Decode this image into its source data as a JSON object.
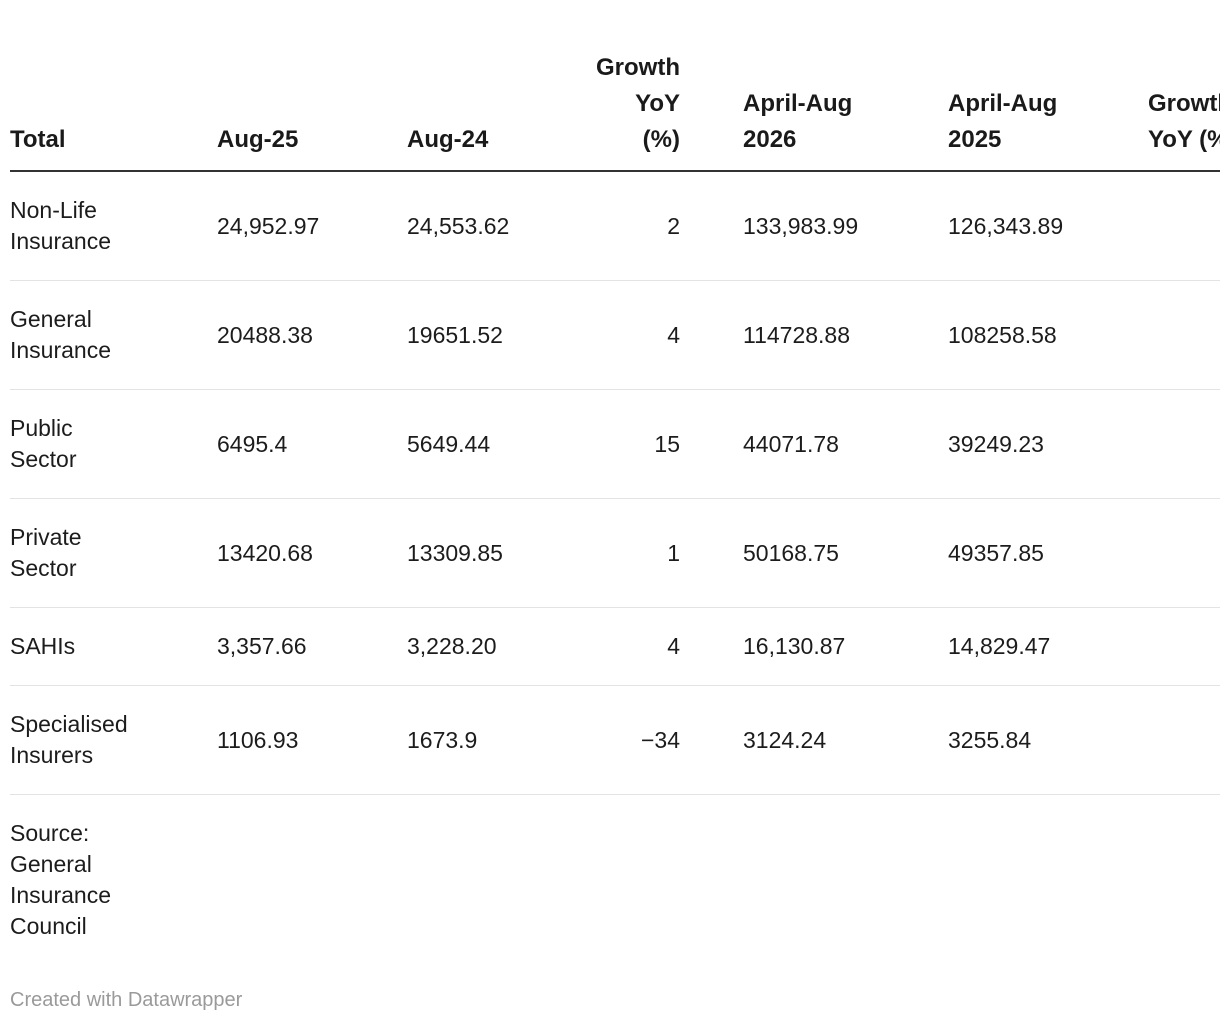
{
  "chart_data": {
    "type": "table",
    "title": "",
    "columns": [
      "Total",
      "Aug-25",
      "Aug-24",
      "Growth YoY (%)",
      "April-Aug 2026",
      "April-Aug 2025",
      "Growth YoY (%)"
    ],
    "rows": [
      [
        "Non-Life Insurance",
        24952.97,
        24553.62,
        2,
        133983.99,
        126343.89,
        null
      ],
      [
        "General Insurance",
        20488.38,
        19651.52,
        4,
        114728.88,
        108258.58,
        null
      ],
      [
        "Public Sector",
        6495.4,
        5649.44,
        15,
        44071.78,
        39249.23,
        null
      ],
      [
        "Private Sector",
        13420.68,
        13309.85,
        1,
        50168.75,
        49357.85,
        null
      ],
      [
        "SAHIs",
        3357.66,
        3228.2,
        4,
        16130.87,
        14829.47,
        null
      ],
      [
        "Specialised Insurers",
        1106.93,
        1673.9,
        -34,
        3124.24,
        3255.84,
        null
      ]
    ],
    "source": "Source: General Insurance Council",
    "layout_hint": "seventh column clipped at right edge of viewport"
  },
  "table": {
    "headers": {
      "col1": "Total",
      "col2": "Aug-25",
      "col3": "Aug-24",
      "col4": "Growth\nYoY\n(%)",
      "col5": "April-Aug\n2026",
      "col6": "April-Aug\n2025",
      "col7": "Growth\nYoY (%)"
    },
    "rows": [
      {
        "label": "Non-Life\nInsurance",
        "cells": [
          "24,952.97",
          "24,553.62",
          "2",
          "133,983.99",
          "126,343.89",
          ""
        ]
      },
      {
        "label": "General\nInsurance",
        "cells": [
          "20488.38",
          "19651.52",
          "4",
          "114728.88",
          "108258.58",
          ""
        ]
      },
      {
        "label": "Public\nSector",
        "cells": [
          "6495.4",
          "5649.44",
          "15",
          "44071.78",
          "39249.23",
          ""
        ]
      },
      {
        "label": "Private\nSector",
        "cells": [
          "13420.68",
          "13309.85",
          "1",
          "50168.75",
          "49357.85",
          ""
        ]
      },
      {
        "label": "SAHIs",
        "cells": [
          "3,357.66",
          "3,228.20",
          "4",
          "16,130.87",
          "14,829.47",
          ""
        ]
      },
      {
        "label": "Specialised\nInsurers",
        "cells": [
          "1106.93",
          "1673.9",
          "−34",
          "3124.24",
          "3255.84",
          ""
        ]
      }
    ],
    "source_note": "Source:\nGeneral\nInsurance\nCouncil"
  },
  "footer": {
    "credit": "Created with Datawrapper"
  },
  "colors": {
    "text": "#1c1c1c",
    "header_text": "#1a1a1a",
    "header_border": "#333333",
    "row_border": "#e3e3e3",
    "credit_text": "#9a9a9a",
    "background": "#ffffff"
  }
}
